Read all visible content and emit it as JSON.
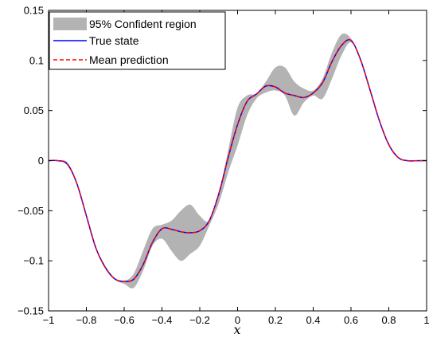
{
  "chart_data": {
    "type": "line",
    "xlabel": "x",
    "ylabel": "",
    "xlim": [
      -1,
      1
    ],
    "ylim": [
      -0.15,
      0.15
    ],
    "xticks": [
      -1,
      -0.8,
      -0.6,
      -0.4,
      -0.2,
      0,
      0.2,
      0.4,
      0.6,
      0.8,
      1
    ],
    "xtick_labels": [
      "−1",
      "−0.8",
      "−0.6",
      "−0.4",
      "−0.2",
      "0",
      "0.2",
      "0.4",
      "0.6",
      "0.8",
      "1"
    ],
    "yticks": [
      -0.15,
      -0.1,
      -0.05,
      0,
      0.05,
      0.1,
      0.15
    ],
    "ytick_labels": [
      "−0.15",
      "−0.1",
      "−0.05",
      "0",
      "0.05",
      "0.1",
      "0.15"
    ],
    "grid": false,
    "legend_position": "top-left",
    "x": [
      -1.0,
      -0.95,
      -0.9,
      -0.85,
      -0.8,
      -0.75,
      -0.7,
      -0.65,
      -0.6,
      -0.55,
      -0.5,
      -0.45,
      -0.4,
      -0.35,
      -0.3,
      -0.25,
      -0.2,
      -0.15,
      -0.1,
      -0.05,
      0.0,
      0.05,
      0.1,
      0.15,
      0.2,
      0.25,
      0.3,
      0.35,
      0.4,
      0.45,
      0.5,
      0.55,
      0.6,
      0.65,
      0.7,
      0.75,
      0.8,
      0.85,
      0.9,
      0.95,
      1.0
    ],
    "series": [
      {
        "name": "95% Confident region",
        "kind": "band",
        "color": "#b3b3b3",
        "lower": [
          0.0,
          -0.0002,
          -0.005,
          -0.024,
          -0.056,
          -0.088,
          -0.108,
          -0.119,
          -0.123,
          -0.127,
          -0.11,
          -0.085,
          -0.078,
          -0.09,
          -0.1,
          -0.093,
          -0.085,
          -0.065,
          -0.043,
          -0.012,
          0.015,
          0.045,
          0.062,
          0.068,
          0.07,
          0.065,
          0.045,
          0.058,
          0.065,
          0.062,
          0.082,
          0.105,
          0.118,
          0.1,
          0.07,
          0.039,
          0.015,
          0.0025,
          -0.0005,
          -0.0003,
          0.0
        ],
        "upper": [
          0.0,
          0.0,
          -0.002,
          -0.022,
          -0.054,
          -0.086,
          -0.105,
          -0.117,
          -0.12,
          -0.113,
          -0.09,
          -0.068,
          -0.064,
          -0.06,
          -0.05,
          -0.044,
          -0.055,
          -0.06,
          -0.035,
          0.01,
          0.053,
          0.065,
          0.067,
          0.079,
          0.093,
          0.093,
          0.079,
          0.072,
          0.07,
          0.082,
          0.108,
          0.126,
          0.122,
          0.102,
          0.072,
          0.041,
          0.017,
          0.0035,
          0.0003,
          0.0002,
          0.0
        ]
      },
      {
        "name": "True state",
        "kind": "line",
        "color": "#0000ff",
        "dash": "solid",
        "values": [
          0.0,
          -0.0001,
          -0.0035,
          -0.023,
          -0.055,
          -0.087,
          -0.1065,
          -0.118,
          -0.1205,
          -0.1185,
          -0.104,
          -0.0815,
          -0.068,
          -0.0685,
          -0.071,
          -0.072,
          -0.07,
          -0.06,
          -0.0335,
          0.003,
          0.036,
          0.059,
          0.0665,
          0.0745,
          0.0735,
          0.0675,
          0.065,
          0.063,
          0.0675,
          0.078,
          0.099,
          0.115,
          0.12,
          0.101,
          0.071,
          0.04,
          0.016,
          0.003,
          -0.0001,
          -0.0001,
          0.0
        ]
      },
      {
        "name": "Mean prediction",
        "kind": "line",
        "color": "#ff0000",
        "dash": "dashed",
        "values": [
          0.0,
          -0.0001,
          -0.0035,
          -0.023,
          -0.055,
          -0.087,
          -0.1065,
          -0.118,
          -0.1205,
          -0.1185,
          -0.104,
          -0.0815,
          -0.068,
          -0.0685,
          -0.071,
          -0.072,
          -0.07,
          -0.06,
          -0.0335,
          0.003,
          0.036,
          0.059,
          0.0665,
          0.0745,
          0.0735,
          0.0675,
          0.065,
          0.063,
          0.0675,
          0.078,
          0.099,
          0.115,
          0.12,
          0.101,
          0.071,
          0.04,
          0.016,
          0.003,
          -0.0001,
          -0.0001,
          0.0
        ]
      }
    ]
  }
}
